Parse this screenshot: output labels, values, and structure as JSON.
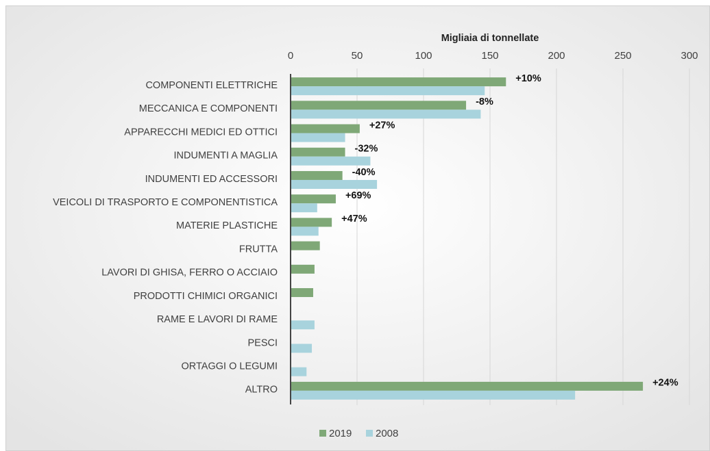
{
  "chart_data": {
    "type": "hbar",
    "x_label": "Migliaia di tonnellate",
    "categories": [
      "COMPONENTI ELETTRICHE",
      "MECCANICA E COMPONENTI",
      "APPARECCHI MEDICI ED OTTICI",
      "INDUMENTI A MAGLIA",
      "INDUMENTI ED ACCESSORI",
      "VEICOLI DI TRASPORTO E COMPONENTISTICA",
      "MATERIE PLASTICHE",
      "FRUTTA",
      "LAVORI DI GHISA, FERRO O ACCIAIO",
      "PRODOTTI CHIMICI ORGANICI",
      "RAME E LAVORI DI RAME",
      "PESCI",
      "ORTAGGI O LEGUMI",
      "ALTRO"
    ],
    "series": [
      {
        "name": "2019",
        "color": "#7fa877",
        "values": [
          162,
          132,
          52,
          41,
          39,
          34,
          31,
          22,
          18,
          17,
          null,
          null,
          null,
          265
        ]
      },
      {
        "name": "2008",
        "color": "#a8d3dd",
        "values": [
          146,
          143,
          41,
          60,
          65,
          20,
          21,
          null,
          null,
          null,
          18,
          16,
          12,
          214
        ]
      }
    ],
    "annotations": [
      "+10%",
      "-8%",
      "+27%",
      "-32%",
      "-40%",
      "+69%",
      "+47%",
      null,
      null,
      null,
      null,
      null,
      null,
      "+24%"
    ],
    "xlim": [
      0,
      300
    ],
    "xticks": [
      0,
      50,
      100,
      150,
      200,
      250,
      300
    ],
    "grid": true,
    "legend": "bottom"
  }
}
